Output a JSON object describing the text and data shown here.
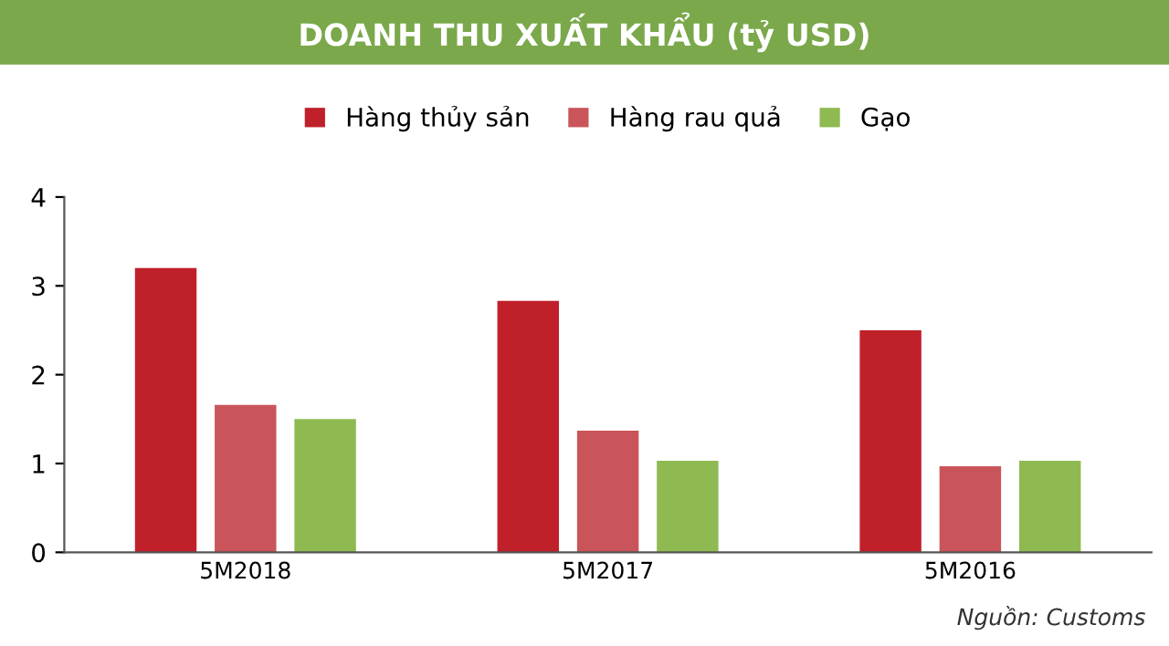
{
  "chart_data": {
    "type": "bar",
    "title": "DOANH THU XUẤT KHẨU (tỷ USD)",
    "categories": [
      "5M2018",
      "5M2017",
      "5M2016"
    ],
    "series": [
      {
        "name": "Hàng thủy sản",
        "color": "#c0202a",
        "values": [
          3.2,
          2.83,
          2.5
        ]
      },
      {
        "name": "Hàng rau quả",
        "color": "#c9555a",
        "values": [
          1.66,
          1.37,
          0.97
        ]
      },
      {
        "name": "Gạo",
        "color": "#8fba52",
        "values": [
          1.5,
          1.03,
          1.03
        ]
      }
    ],
    "ylim": [
      0,
      4
    ],
    "yticks": [
      0,
      1,
      2,
      3,
      4
    ],
    "grid": false,
    "legend": "top",
    "annotations": [
      "Nguồn: Customs"
    ]
  }
}
